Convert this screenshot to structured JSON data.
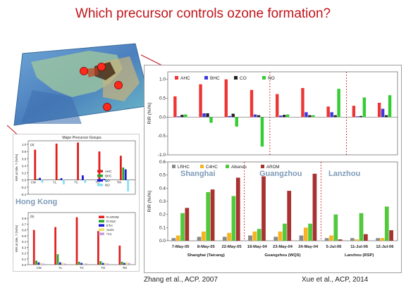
{
  "slide": {
    "title": "Which precursor controls ozone formation?",
    "citation_left": "Zhang et al., ACP.  2007",
    "citation_right": "Xue et al., ACP, 2014"
  },
  "map": {
    "marker_color": "#ff2a1a",
    "marker_count": 4
  },
  "chart_data": [
    {
      "id": "xue-top",
      "type": "bar",
      "ylabel": "RIR (%/%)",
      "ylim": [
        -1.0,
        1.2
      ],
      "yticks": [
        -1.0,
        -0.5,
        0.0,
        0.5,
        1.0
      ],
      "ytick_labels": [
        "-1.0",
        "-0.5",
        "0.0",
        "0.5",
        "1.0"
      ],
      "legend_position": "top-left",
      "groups_per_category": 4,
      "series": [
        {
          "name": "AHC",
          "color": "#ee3535",
          "values": [
            0.55,
            0.87,
            1.0,
            0.72,
            0.61,
            0.77,
            0.28,
            0.3,
            0.38
          ]
        },
        {
          "name": "BHC",
          "color": "#3a3ae0",
          "values": [
            0.02,
            0.1,
            0.03,
            0.07,
            0.04,
            0.13,
            0.13,
            0.02,
            0.22
          ]
        },
        {
          "name": "CO",
          "color": "#222222",
          "values": [
            0.06,
            0.1,
            0.09,
            0.05,
            0.06,
            0.05,
            0.05,
            0.03,
            0.05
          ]
        },
        {
          "name": "NO",
          "color": "#33cc33",
          "values": [
            0.07,
            -0.15,
            -0.25,
            -0.78,
            0.07,
            0.05,
            0.75,
            0.52,
            0.58
          ]
        }
      ],
      "dividers_after": [
        3,
        6
      ]
    },
    {
      "id": "xue-bottom",
      "type": "bar",
      "ylabel": "RIR (%/%)",
      "ylim": [
        0.0,
        0.6
      ],
      "yticks": [
        0.0,
        0.1,
        0.2,
        0.3,
        0.4,
        0.5,
        0.6
      ],
      "ytick_labels": [
        "0.0",
        "0.1",
        "0.2",
        "0.3",
        "0.4",
        "0.5",
        "0.6"
      ],
      "categories": [
        "7-May-05",
        "8-May-05",
        "22-May-05",
        "18-May-04",
        "23-May-04",
        "24-May-04",
        "5-Jul-06",
        "11-Jul-06",
        "12-Jul-06"
      ],
      "sites": [
        {
          "label": "Shanghai (Taicang)",
          "overlay": "Shanghai",
          "span": [
            0,
            2
          ]
        },
        {
          "label": "Guangzhou (WQS)",
          "overlay": "Guangzhou",
          "span": [
            3,
            5
          ]
        },
        {
          "label": "Lanzhou (RSP)",
          "overlay": "Lanzhou",
          "span": [
            6,
            8
          ]
        }
      ],
      "series": [
        {
          "name": "LRHC",
          "color": "#8a8a8a",
          "values": [
            0.02,
            0.03,
            0.03,
            0.04,
            0.03,
            0.04,
            0.02,
            0.02,
            0.02
          ]
        },
        {
          "name": "C4HC",
          "color": "#f6b420",
          "values": [
            0.04,
            0.07,
            0.06,
            0.07,
            0.07,
            0.1,
            0.04,
            0.01,
            0.02
          ]
        },
        {
          "name": "Alkenes",
          "color": "#52c83c",
          "values": [
            0.21,
            0.37,
            0.34,
            0.09,
            0.13,
            0.13,
            0.2,
            0.21,
            0.26
          ]
        },
        {
          "name": "AROM",
          "color": "#a83232",
          "values": [
            0.25,
            0.39,
            0.48,
            0.49,
            0.38,
            0.51,
            0.01,
            0.05,
            0.08
          ]
        }
      ],
      "dividers_after": [
        2,
        5
      ]
    },
    {
      "id": "zhang-a",
      "type": "bar",
      "title": "Major Precursor Groups",
      "panel_label": "(a)",
      "ylabel": "RIR at Site, ?  (%/%)",
      "ylim": [
        -0.4,
        1.1
      ],
      "yticks": [
        -0.4,
        -0.2,
        0.0,
        0.2,
        0.4,
        0.6,
        0.8,
        1.0
      ],
      "ytick_labels": [
        "-0.4",
        "-0.2",
        "0.0",
        "0.2",
        "0.4",
        "0.6",
        "0.8",
        "1.0"
      ],
      "categories": [
        "CW",
        "YL",
        "TC",
        "TO",
        "TM"
      ],
      "overlay_text": "Hong Kong",
      "series": [
        {
          "name": "AHC",
          "color": "#e01f1f",
          "values": [
            0.85,
            1.02,
            1.05,
            0.8,
            0.68
          ]
        },
        {
          "name": "BHC",
          "color": "#2aa52a",
          "values": [
            0.03,
            0.02,
            0.01,
            0.02,
            0.35
          ]
        },
        {
          "name": "CO",
          "color": "#1a1ad8",
          "values": [
            0.06,
            0.05,
            0.13,
            0.03,
            0.3
          ]
        },
        {
          "name": "NO",
          "color": "#88e0f0",
          "values": [
            -0.08,
            -0.12,
            -0.08,
            -0.06,
            -0.32
          ]
        }
      ]
    },
    {
      "id": "zhang-b",
      "type": "bar",
      "panel_label": "(b)",
      "ylabel": "RIR at Site, ?  (%/%)",
      "ylim": [
        0.0,
        0.9
      ],
      "yticks": [
        0.0,
        0.1,
        0.2,
        0.3,
        0.4,
        0.5,
        0.6,
        0.7,
        0.8
      ],
      "ytick_labels": [
        "0.0",
        "0.1",
        "0.2",
        "0.3",
        "0.4",
        "0.5",
        "0.6",
        "0.7",
        "0.8"
      ],
      "categories": [
        "CW",
        "YL",
        "TC",
        "TO",
        "TM"
      ],
      "series": [
        {
          "name": "R-AROM",
          "color": "#e01f1f",
          "values": [
            0.6,
            0.65,
            0.82,
            0.58,
            0.33
          ]
        },
        {
          "name": "R-OLE",
          "color": "#2aa52a",
          "values": [
            0.07,
            0.18,
            0.05,
            0.06,
            0.05
          ]
        },
        {
          "name": "ETH",
          "color": "#1a1ad8",
          "values": [
            0.04,
            0.04,
            0.03,
            0.03,
            0.03
          ]
        },
        {
          "name": "ALDs",
          "color": "#f0e060",
          "values": [
            0.03,
            0.03,
            0.02,
            0.03,
            0.04
          ]
        },
        {
          "name": "*C4",
          "color": "#c898e0",
          "values": [
            0.02,
            0.02,
            0.02,
            0.02,
            0.03
          ]
        }
      ]
    }
  ]
}
